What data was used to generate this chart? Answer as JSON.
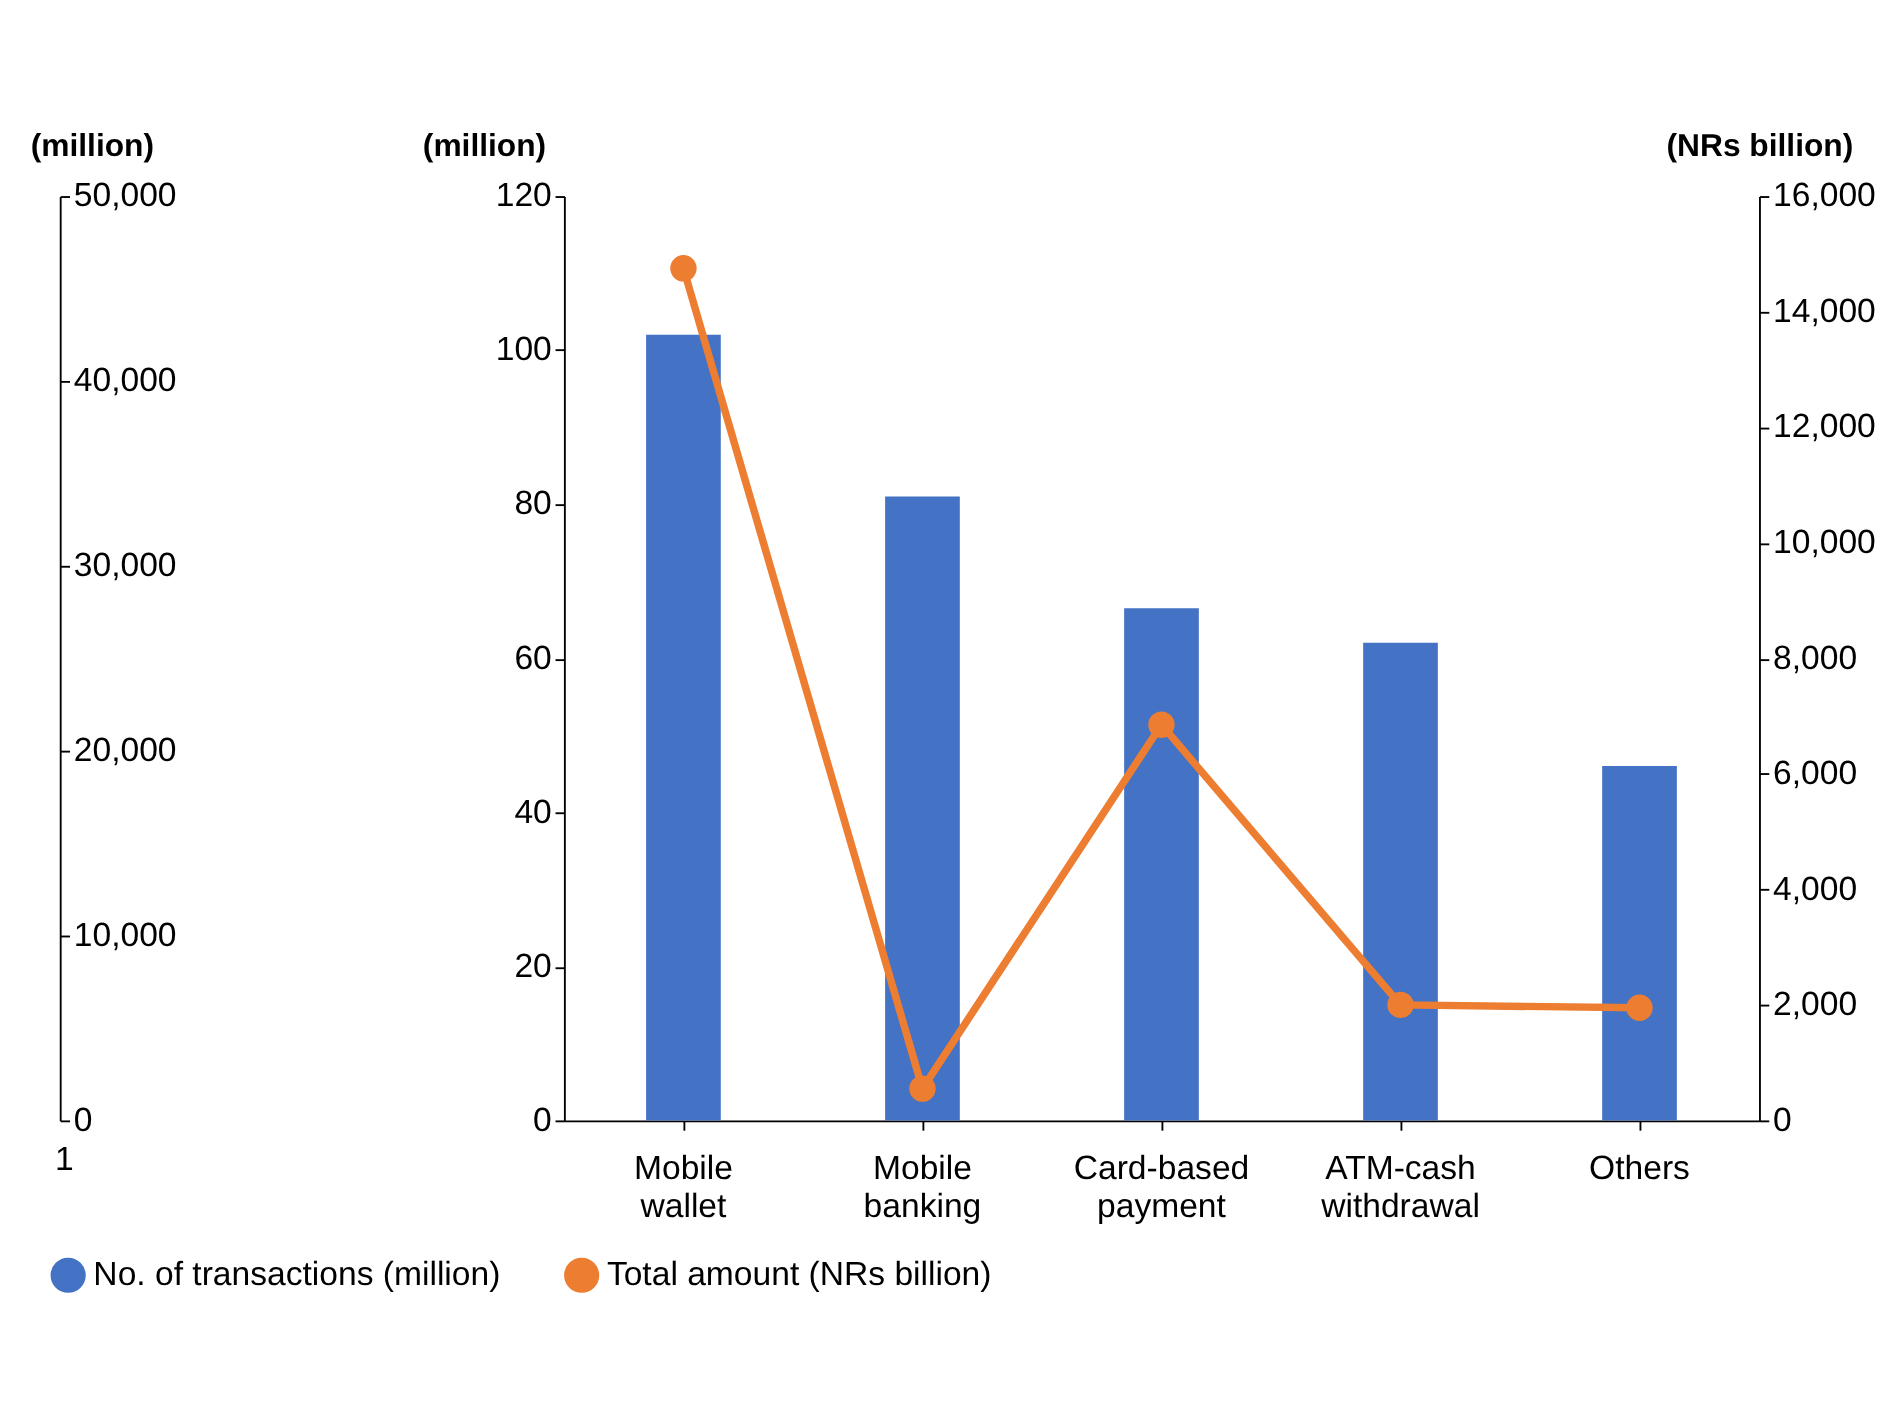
{
  "chart_data": [
    {
      "type": "bar",
      "ylabel": "(million)",
      "ylim": [
        0,
        50000
      ],
      "yticks": [
        0,
        {
          "value": 10000,
          "label": "10,000"
        },
        {
          "value": 20000,
          "label": "20,000"
        },
        {
          "value": 30000,
          "label": "30,000"
        },
        {
          "value": 40000,
          "label": "40,000"
        },
        {
          "value": 50000,
          "label": "50,000"
        }
      ],
      "categories": [
        "1"
      ],
      "values": [
        null
      ]
    },
    {
      "type": "bar",
      "ylabel": "(million)",
      "y2label": "(NRs billion)",
      "categories": [
        "Mobile wallet",
        "Mobile banking",
        "Card-based payment",
        "ATM-cash withdrawal",
        "Others"
      ],
      "ylim": [
        0,
        120
      ],
      "yticks": [
        0,
        20,
        40,
        60,
        80,
        100,
        120
      ],
      "y2lim": [
        0,
        16000
      ],
      "y2ticks": [
        0,
        {
          "value": 2000,
          "label": "2,000"
        },
        {
          "value": 4000,
          "label": "4,000"
        },
        {
          "value": 6000,
          "label": "6,000"
        },
        {
          "value": 8000,
          "label": "8,000"
        },
        {
          "value": 10000,
          "label": "10,000"
        },
        {
          "value": 12000,
          "label": "12,000"
        },
        {
          "value": 14000,
          "label": "14,000"
        },
        {
          "value": 16000,
          "label": "16,000"
        }
      ],
      "legend": "bottom",
      "marker": "circle",
      "series": [
        {
          "name": "No. of transactions (million)",
          "color": "#4472c4",
          "values": [
            102,
            81,
            66.5,
            62,
            46
          ]
        },
        {
          "name": "Total amount (NRs billion)",
          "type": "line",
          "axis": "y2",
          "color": "#ed7d31",
          "values": [
            14750,
            550,
            6850,
            2000,
            1950
          ]
        }
      ]
    }
  ]
}
